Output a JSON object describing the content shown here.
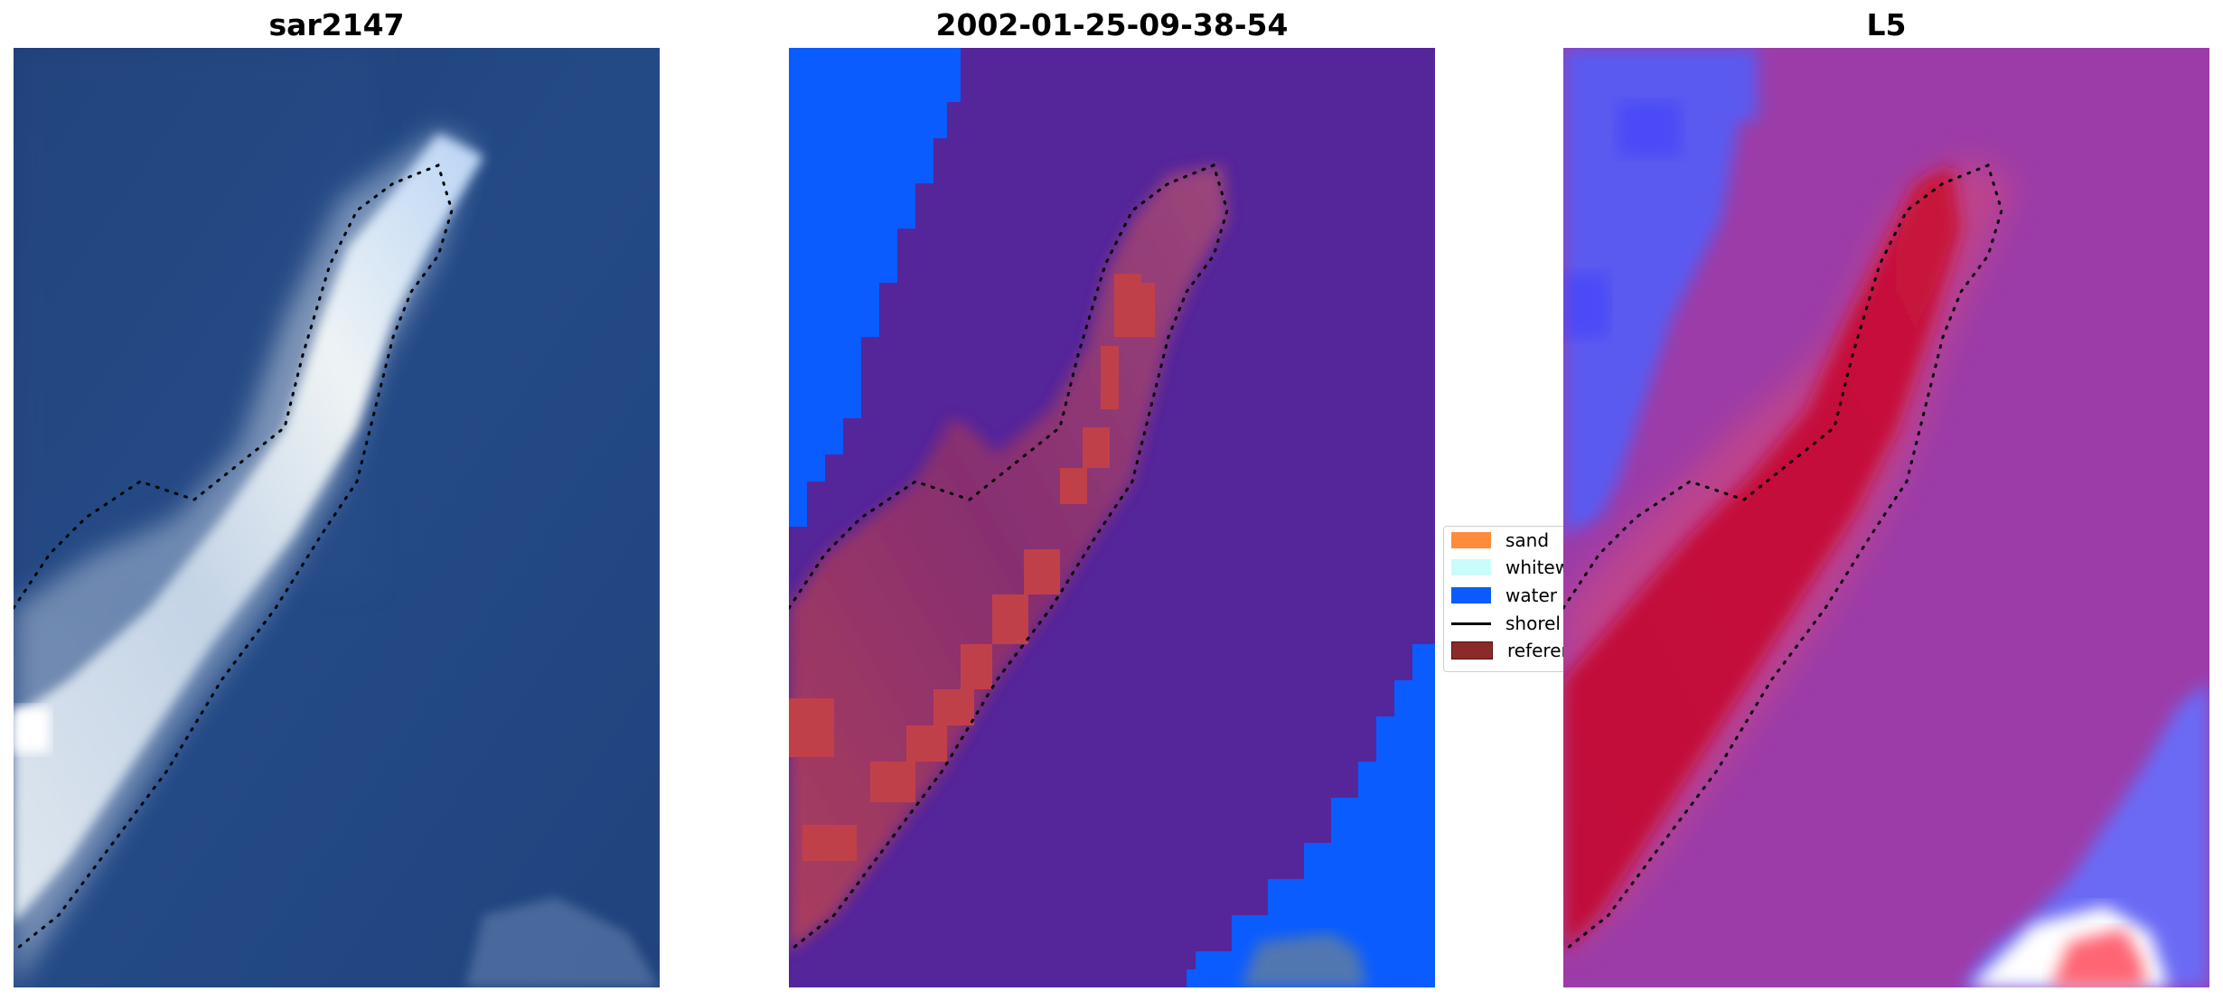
{
  "panels": [
    {
      "title": "sar2147"
    },
    {
      "title": "2002-01-25-09-38-54"
    },
    {
      "title": "L5"
    }
  ],
  "legend": {
    "items": [
      {
        "label": "sand",
        "color": "#ff8c3a",
        "kind": "patch"
      },
      {
        "label": "whitew",
        "color": "#c8fdfb",
        "kind": "patch"
      },
      {
        "label": "water",
        "color": "#0a5cff",
        "kind": "patch"
      },
      {
        "label": "shorel",
        "color": "#000000",
        "kind": "line"
      },
      {
        "label": "referen",
        "color": "#8b2a2a",
        "kind": "patch"
      }
    ]
  },
  "colors": {
    "sea_rgb": "#23457f",
    "sand_rgb": "#c9d6e8",
    "class_background": "#55259a",
    "class_water": "#0a5cff",
    "class_reference": "#c0404a",
    "prob_low": "#3b3bff",
    "prob_mid": "#9c3ca8",
    "prob_high": "#c8123a"
  }
}
